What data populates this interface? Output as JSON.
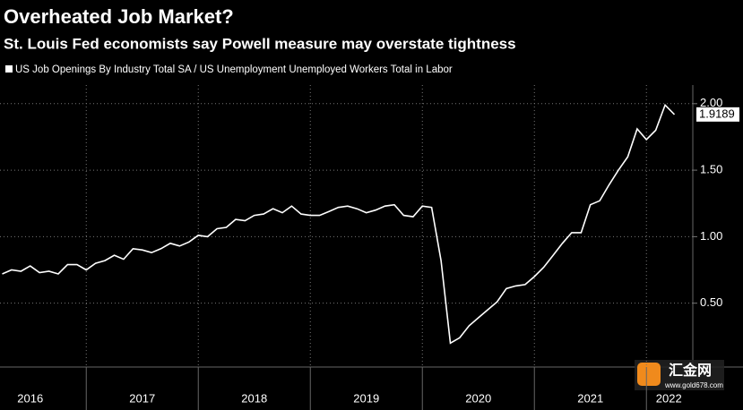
{
  "chart_data": {
    "type": "line",
    "title": "Overheated Job Market?",
    "subtitle": "St. Louis Fed economists say Powell measure may overstate tightness",
    "series": [
      {
        "name": "US Job Openings By Industry Total SA / US Unemployment Unemployed Workers Total in Labor",
        "color": "#ffffff",
        "values": [
          0.72,
          0.75,
          0.74,
          0.78,
          0.73,
          0.74,
          0.72,
          0.79,
          0.79,
          0.75,
          0.8,
          0.82,
          0.86,
          0.83,
          0.91,
          0.9,
          0.88,
          0.91,
          0.95,
          0.93,
          0.96,
          1.01,
          1.0,
          1.06,
          1.07,
          1.13,
          1.12,
          1.16,
          1.17,
          1.21,
          1.18,
          1.23,
          1.17,
          1.16,
          1.16,
          1.19,
          1.22,
          1.23,
          1.21,
          1.18,
          1.2,
          1.23,
          1.24,
          1.16,
          1.15,
          1.23,
          1.22,
          0.82,
          0.2,
          0.24,
          0.33,
          0.39,
          0.45,
          0.51,
          0.61,
          0.63,
          0.64,
          0.7,
          0.77,
          0.86,
          0.95,
          1.03,
          1.03,
          1.24,
          1.27,
          1.39,
          1.5,
          1.6,
          1.81,
          1.73,
          1.8,
          1.99,
          1.9189
        ],
        "last_value_label": "1.9189"
      }
    ],
    "x": [
      2016.25,
      2016.333,
      2016.417,
      2016.5,
      2016.583,
      2016.667,
      2016.75,
      2016.833,
      2016.917,
      2017,
      2017.083,
      2017.167,
      2017.25,
      2017.333,
      2017.417,
      2017.5,
      2017.583,
      2017.667,
      2017.75,
      2017.833,
      2017.917,
      2018,
      2018.083,
      2018.167,
      2018.25,
      2018.333,
      2018.417,
      2018.5,
      2018.583,
      2018.667,
      2018.75,
      2018.833,
      2018.917,
      2019,
      2019.083,
      2019.167,
      2019.25,
      2019.333,
      2019.417,
      2019.5,
      2019.583,
      2019.667,
      2019.75,
      2019.833,
      2019.917,
      2020,
      2020.083,
      2020.167,
      2020.25,
      2020.333,
      2020.417,
      2020.5,
      2020.583,
      2020.667,
      2020.75,
      2020.833,
      2020.917,
      2021,
      2021.083,
      2021.167,
      2021.25,
      2021.333,
      2021.417,
      2021.5,
      2021.583,
      2021.667,
      2021.75,
      2021.833,
      2021.917,
      2022,
      2022.083,
      2022.167,
      2022.25
    ],
    "xlim": [
      2016.23,
      2022.39
    ],
    "xticks": [
      {
        "value": 2016.5,
        "label": "2016"
      },
      {
        "value": 2017.5,
        "label": "2017"
      },
      {
        "value": 2018.5,
        "label": "2018"
      },
      {
        "value": 2019.5,
        "label": "2019"
      },
      {
        "value": 2020.5,
        "label": "2020"
      },
      {
        "value": 2021.5,
        "label": "2021"
      },
      {
        "value": 2022.2,
        "label": "2022"
      }
    ],
    "xgrid": [
      2017,
      2018,
      2019,
      2020,
      2021,
      2022
    ],
    "ylim": [
      0.02,
      2.14
    ],
    "yticks": [
      {
        "value": 0.5,
        "label": "0.50"
      },
      {
        "value": 1,
        "label": "1.00"
      },
      {
        "value": 1.5,
        "label": "1.50"
      },
      {
        "value": 2,
        "label": "2.00"
      }
    ],
    "grid": true,
    "watermark": "汇金网",
    "watermark_url": "www.gold678.com"
  }
}
